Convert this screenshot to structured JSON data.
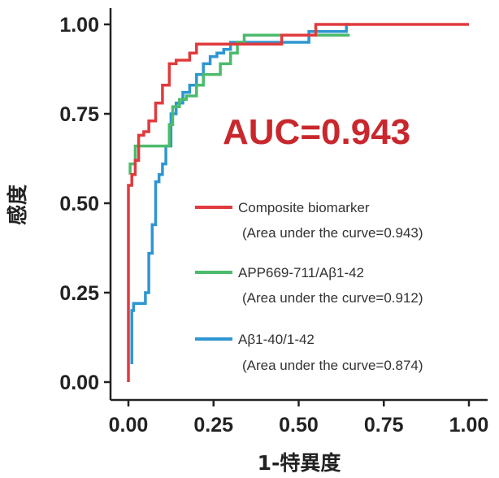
{
  "chart_data": {
    "type": "line",
    "title": "",
    "xlabel": "1-特異度",
    "ylabel": "感度",
    "xlim": [
      0,
      1
    ],
    "ylim": [
      0,
      1
    ],
    "x_ticks": [
      "0.00",
      "0.25",
      "0.50",
      "0.75",
      "1.00"
    ],
    "y_ticks": [
      "0.00",
      "0.25",
      "0.50",
      "0.75",
      "1.00"
    ],
    "grid": false,
    "legend_position": "center-right",
    "annotation": {
      "text": "AUC=0.943",
      "color": "#c8282d"
    },
    "series": [
      {
        "name": "Composite biomarker",
        "auc_label": "(Area under the curve=0.943)",
        "color": "#e03a3e",
        "x": [
          0,
          0,
          0.01,
          0.01,
          0.02,
          0.02,
          0.03,
          0.03,
          0.045,
          0.045,
          0.06,
          0.06,
          0.08,
          0.08,
          0.1,
          0.1,
          0.12,
          0.12,
          0.14,
          0.14,
          0.18,
          0.18,
          0.2,
          0.2,
          0.22,
          0.22,
          0.45,
          0.45,
          0.55,
          0.55,
          1.0
        ],
        "y": [
          0,
          0.55,
          0.55,
          0.58,
          0.58,
          0.62,
          0.62,
          0.69,
          0.69,
          0.7,
          0.7,
          0.73,
          0.73,
          0.78,
          0.78,
          0.83,
          0.83,
          0.89,
          0.89,
          0.9,
          0.9,
          0.92,
          0.92,
          0.945,
          0.945,
          0.945,
          0.945,
          0.97,
          0.97,
          1.0,
          1.0
        ]
      },
      {
        "name": "APP669-711/Aβ1-42",
        "auc_label": "(Area under the curve=0.912)",
        "color": "#4cbb6c",
        "x": [
          0.005,
          0.005,
          0.02,
          0.02,
          0.12,
          0.12,
          0.13,
          0.13,
          0.15,
          0.15,
          0.17,
          0.17,
          0.2,
          0.2,
          0.22,
          0.22,
          0.24,
          0.24,
          0.27,
          0.27,
          0.3,
          0.3,
          0.32,
          0.32,
          0.34,
          0.34,
          0.5,
          0.5,
          0.52,
          0.52,
          0.65
        ],
        "y": [
          0.58,
          0.61,
          0.61,
          0.66,
          0.66,
          0.72,
          0.72,
          0.77,
          0.77,
          0.79,
          0.79,
          0.8,
          0.8,
          0.83,
          0.83,
          0.86,
          0.86,
          0.86,
          0.86,
          0.89,
          0.89,
          0.92,
          0.92,
          0.95,
          0.95,
          0.97,
          0.97,
          0.97,
          0.97,
          0.97,
          0.97
        ]
      },
      {
        "name": "Aβ1-40/1-42",
        "auc_label": "(Area under the curve=0.874)",
        "color": "#2e96d1",
        "x": [
          0.01,
          0.01,
          0.015,
          0.015,
          0.05,
          0.05,
          0.06,
          0.06,
          0.07,
          0.07,
          0.08,
          0.08,
          0.09,
          0.09,
          0.1,
          0.1,
          0.11,
          0.11,
          0.125,
          0.125,
          0.14,
          0.14,
          0.16,
          0.16,
          0.18,
          0.18,
          0.2,
          0.2,
          0.22,
          0.22,
          0.24,
          0.24,
          0.26,
          0.26,
          0.28,
          0.28,
          0.3,
          0.3,
          0.32,
          0.32,
          0.53,
          0.53,
          0.64,
          0.64,
          0.65
        ],
        "y": [
          0.05,
          0.2,
          0.2,
          0.22,
          0.22,
          0.25,
          0.25,
          0.36,
          0.36,
          0.44,
          0.44,
          0.56,
          0.56,
          0.58,
          0.58,
          0.61,
          0.61,
          0.66,
          0.66,
          0.75,
          0.75,
          0.78,
          0.78,
          0.81,
          0.81,
          0.83,
          0.83,
          0.86,
          0.86,
          0.89,
          0.89,
          0.91,
          0.91,
          0.92,
          0.92,
          0.93,
          0.93,
          0.95,
          0.95,
          0.95,
          0.95,
          0.98,
          0.98,
          1.0,
          1.0
        ]
      }
    ]
  }
}
